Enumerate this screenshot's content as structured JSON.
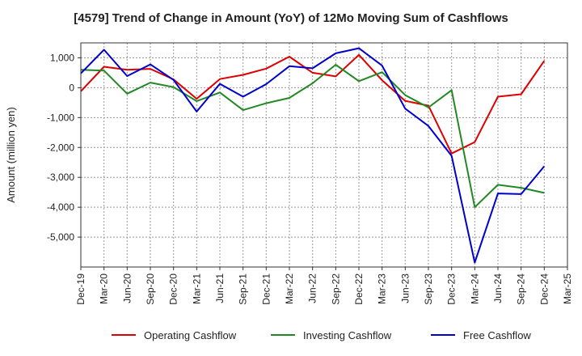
{
  "chart_data": {
    "type": "line",
    "title": "[4579]  Trend of Change in Amount (YoY) of 12Mo Moving Sum of Cashflows",
    "xlabel": "",
    "ylabel": "Amount (million yen)",
    "ylim": [
      -6000,
      1500
    ],
    "yticks": [
      1000,
      0,
      -1000,
      -2000,
      -3000,
      -4000,
      -5000
    ],
    "ytick_labels": [
      "1,000",
      "0",
      "-1,000",
      "-2,000",
      "-3,000",
      "-4,000",
      "-5,000"
    ],
    "grid": true,
    "legend_position": "bottom",
    "categories": [
      "Dec-19",
      "Mar-20",
      "Jun-20",
      "Sep-20",
      "Dec-20",
      "Mar-21",
      "Jun-21",
      "Sep-21",
      "Dec-21",
      "Mar-22",
      "Jun-22",
      "Sep-22",
      "Dec-22",
      "Mar-23",
      "Jun-23",
      "Sep-23",
      "Dec-23",
      "Mar-24",
      "Jun-24",
      "Sep-24",
      "Dec-24",
      "Mar-25"
    ],
    "series": [
      {
        "name": "Operating Cashflow",
        "color": "#dd0000",
        "values": [
          -120,
          700,
          600,
          630,
          280,
          -370,
          290,
          430,
          640,
          1040,
          500,
          380,
          1100,
          250,
          -440,
          -600,
          -2200,
          -1820,
          -300,
          -220,
          900,
          null
        ]
      },
      {
        "name": "Investing Cashflow",
        "color": "#228822",
        "values": [
          600,
          570,
          -200,
          170,
          20,
          -450,
          -160,
          -750,
          -520,
          -340,
          150,
          770,
          220,
          520,
          -250,
          -660,
          -80,
          -4000,
          -3250,
          -3350,
          -3520,
          null
        ]
      },
      {
        "name": "Free Cashflow",
        "color": "#0000cc",
        "values": [
          480,
          1270,
          390,
          780,
          260,
          -800,
          130,
          -300,
          120,
          720,
          650,
          1150,
          1320,
          740,
          -700,
          -1280,
          -2280,
          -5850,
          -3540,
          -3560,
          -2630,
          null
        ]
      }
    ]
  }
}
